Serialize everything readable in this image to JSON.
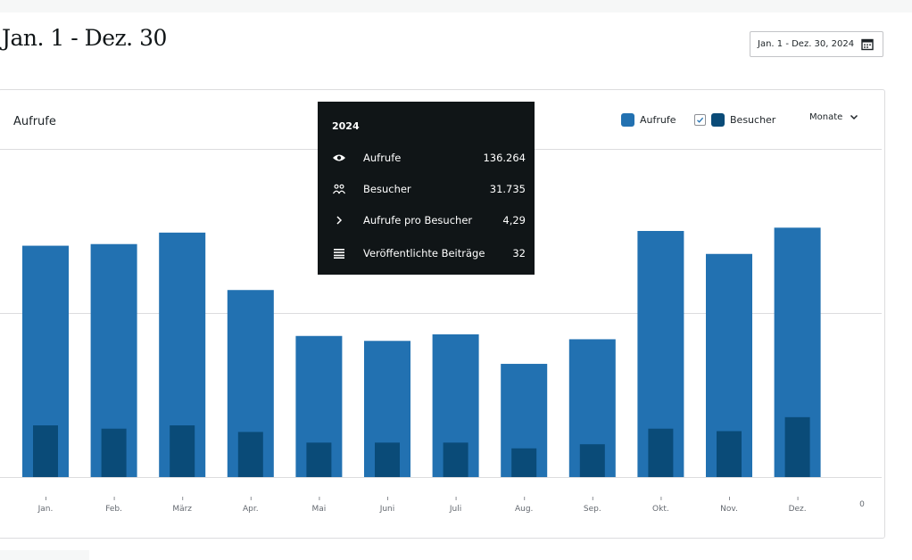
{
  "header": {
    "title": "Jan. 1 - Dez. 30",
    "date_range_label": "Jan. 1 - Dez. 30, 2024"
  },
  "card": {
    "title": "Aufrufe",
    "legend": [
      {
        "label": "Aufrufe",
        "color": "#2271b1",
        "checkbox": false
      },
      {
        "label": "Besucher",
        "color": "#0a4b78",
        "checkbox": true
      }
    ],
    "period_select": "Monate"
  },
  "tooltip": {
    "title": "2024",
    "rows": [
      {
        "icon": "eye-icon",
        "label": "Aufrufe",
        "value": "136.264"
      },
      {
        "icon": "people-icon",
        "label": "Besucher",
        "value": "31.735"
      },
      {
        "icon": "chevron-right-icon",
        "label": "Aufrufe pro Besucher",
        "value": "4,29"
      },
      {
        "icon": "list-icon",
        "label": "Veröffentlichte Beiträge",
        "value": "32"
      }
    ]
  },
  "chart_data": {
    "type": "bar",
    "title": "Aufrufe",
    "categories": [
      "Jan.",
      "Feb.",
      "März",
      "Apr.",
      "Mai",
      "Juni",
      "Juli",
      "Aug.",
      "Sep.",
      "Okt.",
      "Nov.",
      "Dez."
    ],
    "series": [
      {
        "name": "Aufrufe",
        "color": "#2271b1",
        "values": [
          14100,
          14200,
          14900,
          11400,
          8600,
          8300,
          8700,
          6900,
          8400,
          15000,
          13600,
          15200
        ]
      },
      {
        "name": "Besucher",
        "color": "#0a4b78",
        "values": [
          3150,
          2950,
          3150,
          2750,
          2100,
          2100,
          2100,
          1750,
          2000,
          2950,
          2800,
          3650
        ]
      }
    ],
    "y_tick_labels": [
      "0"
    ],
    "ylim": [
      0,
      20000
    ],
    "grid": true,
    "legend_position": "top-right"
  }
}
